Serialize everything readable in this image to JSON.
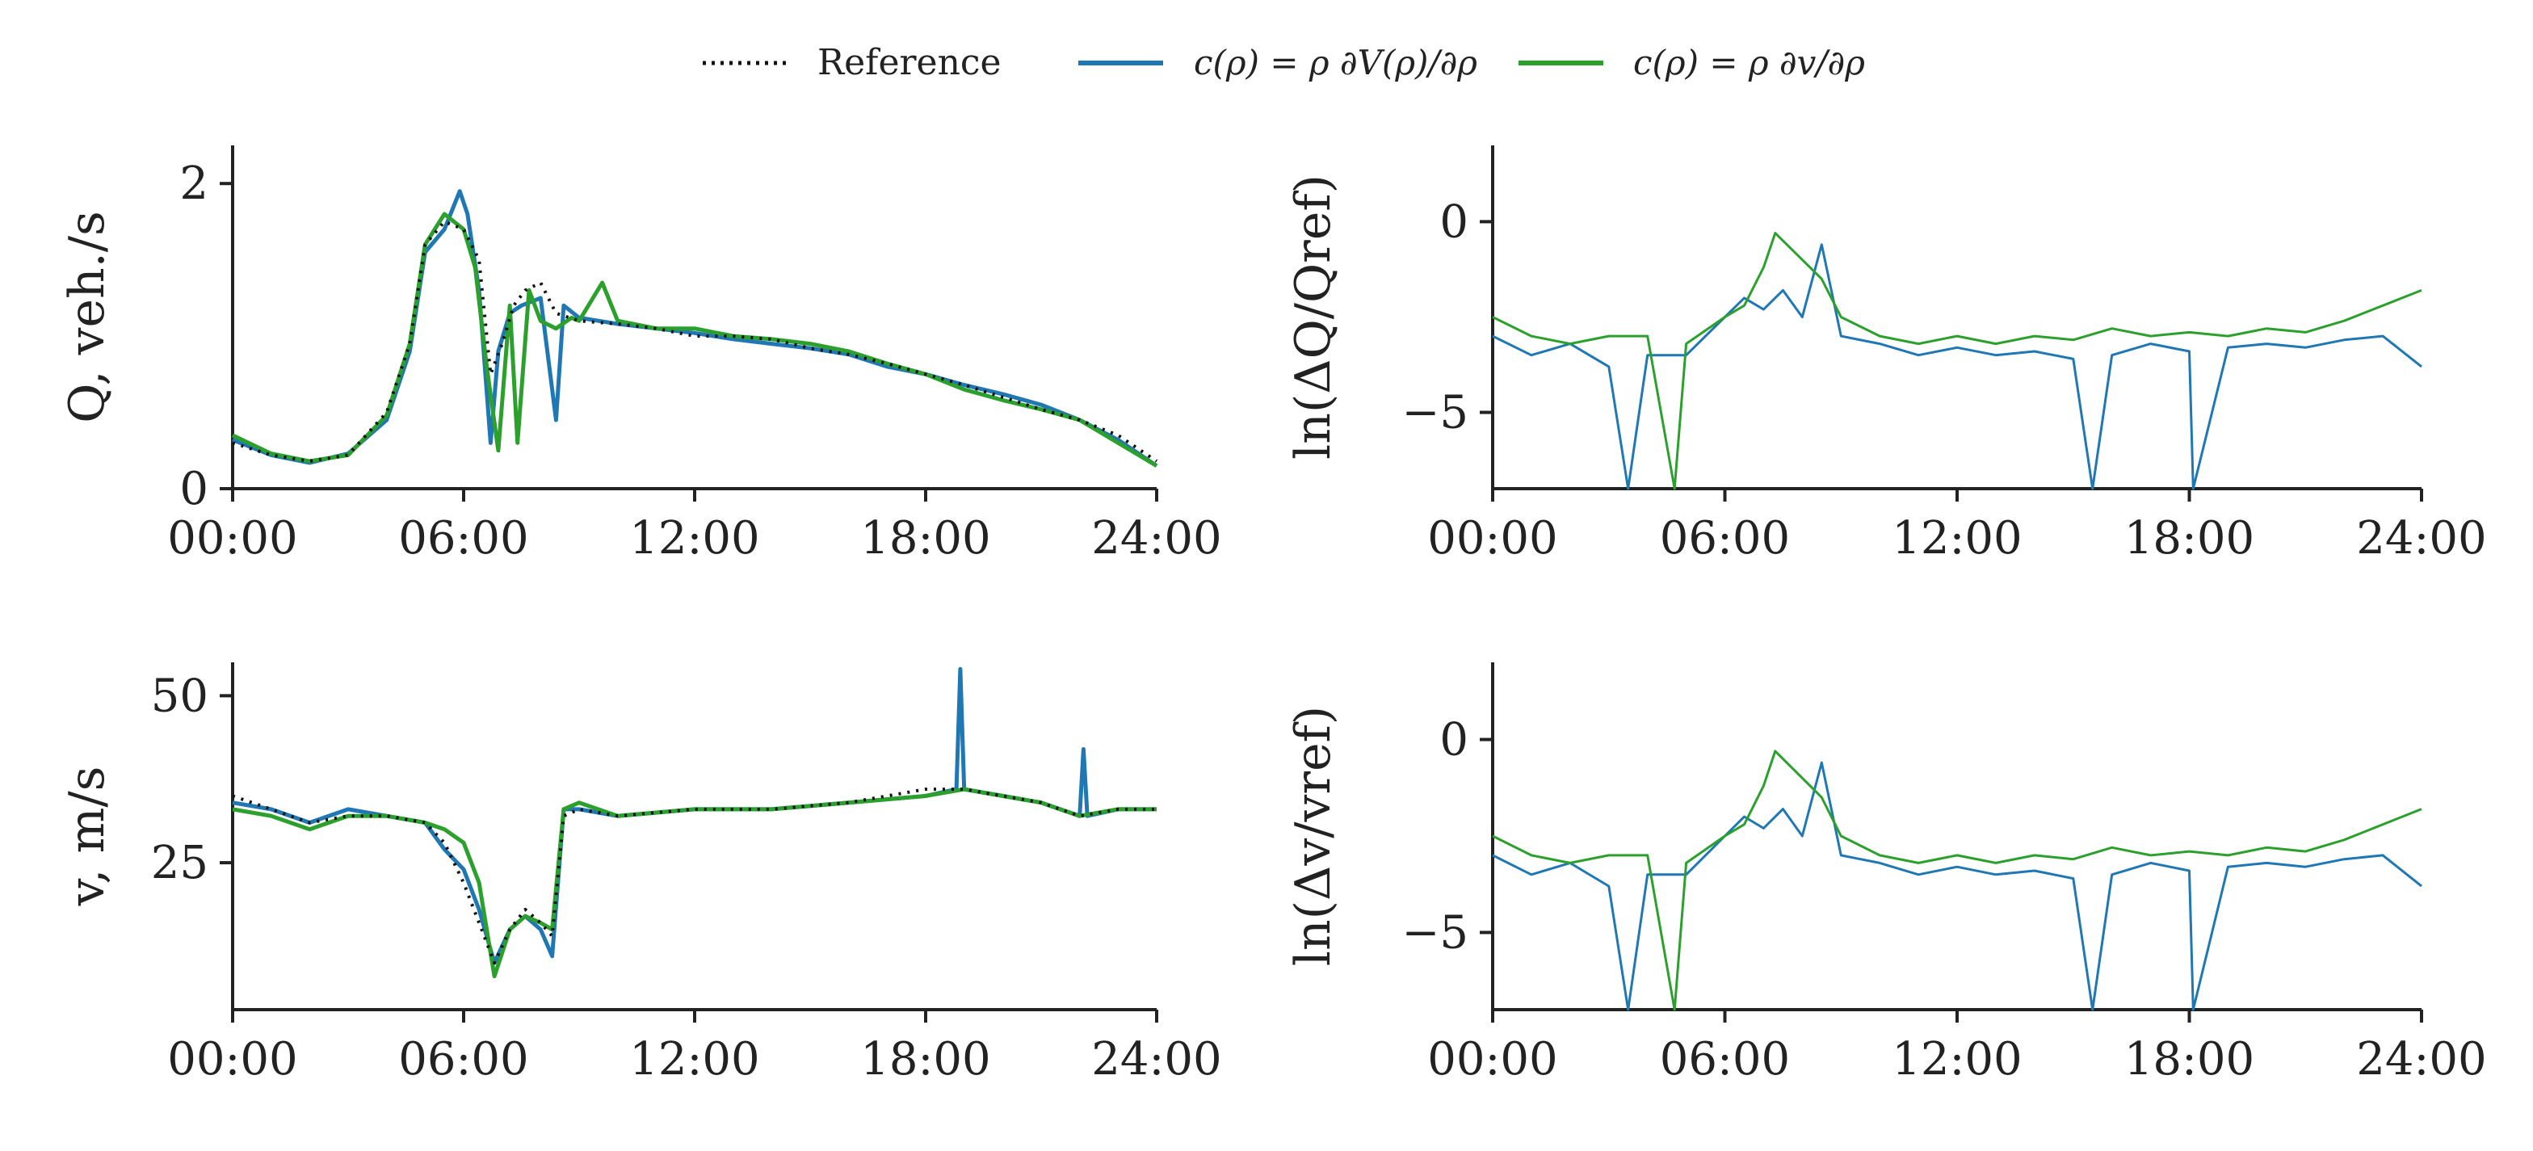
{
  "legend": {
    "entries": [
      {
        "label": "Reference",
        "style": "dotted",
        "color": "#111111"
      },
      {
        "label": "c(ρ) = ρ ∂V(ρ)/∂ρ",
        "style": "solid",
        "color": "#1f77b4"
      },
      {
        "label": "c(ρ) = ρ ∂v/∂ρ",
        "style": "solid",
        "color": "#2ca02c"
      }
    ]
  },
  "colors": {
    "reference": "#111111",
    "blue": "#1f77b4",
    "green": "#2ca02c",
    "axis": "#222222"
  },
  "chart_data": [
    {
      "id": "flow",
      "type": "line",
      "ylabel": "Q, veh./s",
      "xlabel": "",
      "xlim": [
        0,
        24
      ],
      "ylim": [
        0,
        2.25
      ],
      "yticks": [
        0,
        2
      ],
      "ytick_labels": [
        "0",
        "2"
      ],
      "xticks": [
        0,
        6,
        12,
        18,
        24
      ],
      "xtick_labels": [
        "00:00",
        "06:00",
        "12:00",
        "18:00",
        "24:00"
      ],
      "series": [
        {
          "name": "Reference",
          "x": [
            0,
            1,
            2,
            3,
            4,
            4.6,
            5,
            5.5,
            6,
            6.4,
            6.7,
            7,
            7.3,
            7.6,
            8,
            8.4,
            9,
            10,
            11,
            12,
            13,
            14,
            15,
            16,
            17,
            18,
            19,
            20,
            21,
            22,
            23,
            24
          ],
          "y": [
            0.3,
            0.22,
            0.18,
            0.22,
            0.5,
            0.95,
            1.6,
            1.75,
            1.7,
            1.5,
            0.75,
            0.95,
            1.2,
            1.3,
            1.35,
            1.15,
            1.1,
            1.08,
            1.05,
            1.0,
            1.0,
            0.98,
            0.92,
            0.88,
            0.82,
            0.75,
            0.68,
            0.6,
            0.52,
            0.45,
            0.35,
            0.18
          ]
        },
        {
          "name": "c(ρ) = ρ ∂V(ρ)/∂ρ",
          "x": [
            0,
            1,
            2,
            3,
            4,
            4.6,
            5,
            5.5,
            5.9,
            6.1,
            6.4,
            6.7,
            6.9,
            7.2,
            7.5,
            8,
            8.4,
            8.6,
            9,
            10,
            11,
            12,
            13,
            14,
            15,
            16,
            17,
            18,
            19,
            20,
            21,
            22,
            23,
            24
          ],
          "y": [
            0.32,
            0.22,
            0.17,
            0.23,
            0.45,
            0.9,
            1.55,
            1.7,
            1.95,
            1.8,
            1.3,
            0.3,
            0.9,
            1.15,
            1.2,
            1.25,
            0.45,
            1.2,
            1.12,
            1.08,
            1.05,
            1.02,
            0.98,
            0.95,
            0.92,
            0.88,
            0.8,
            0.75,
            0.68,
            0.62,
            0.55,
            0.45,
            0.32,
            0.15
          ]
        },
        {
          "name": "c(ρ) = ρ ∂v/∂ρ",
          "x": [
            0,
            1,
            2,
            3,
            4,
            4.6,
            5,
            5.5,
            6,
            6.3,
            6.6,
            6.9,
            7.2,
            7.4,
            7.7,
            8,
            8.4,
            8.8,
            9,
            9.6,
            10,
            11,
            12,
            13,
            14,
            15,
            16,
            17,
            18,
            19,
            20,
            21,
            22,
            23,
            24
          ],
          "y": [
            0.35,
            0.23,
            0.18,
            0.22,
            0.48,
            0.95,
            1.6,
            1.8,
            1.7,
            1.45,
            0.8,
            0.25,
            1.2,
            0.3,
            1.3,
            1.1,
            1.05,
            1.12,
            1.1,
            1.35,
            1.1,
            1.05,
            1.05,
            1.0,
            0.98,
            0.95,
            0.9,
            0.82,
            0.75,
            0.65,
            0.58,
            0.52,
            0.45,
            0.3,
            0.15
          ]
        }
      ]
    },
    {
      "id": "flow-error",
      "type": "line",
      "ylabel": "ln(ΔQ/Qref)",
      "xlim": [
        0,
        24
      ],
      "ylim": [
        -7,
        2
      ],
      "yticks": [
        0,
        -5
      ],
      "ytick_labels": [
        "0",
        "−5"
      ],
      "xticks": [
        0,
        6,
        12,
        18,
        24
      ],
      "xtick_labels": [
        "00:00",
        "06:00",
        "12:00",
        "18:00",
        "24:00"
      ],
      "series": [
        {
          "name": "c(ρ) = ρ ∂V(ρ)/∂ρ",
          "x": [
            0,
            1,
            2,
            3,
            3.5,
            4,
            5,
            6,
            6.5,
            7,
            7.5,
            8,
            8.5,
            9,
            10,
            11,
            12,
            13,
            14,
            15,
            15.5,
            16,
            17,
            18,
            18.1,
            19,
            20,
            21,
            22,
            23,
            24
          ],
          "y": [
            -3,
            -3.5,
            -3.2,
            -3.8,
            -7,
            -3.5,
            -3.5,
            -2.5,
            -2,
            -2.3,
            -1.8,
            -2.5,
            -0.6,
            -3,
            -3.2,
            -3.5,
            -3.3,
            -3.5,
            -3.4,
            -3.6,
            -7,
            -3.5,
            -3.2,
            -3.4,
            -7,
            -3.3,
            -3.2,
            -3.3,
            -3.1,
            -3,
            -3.8
          ]
        },
        {
          "name": "c(ρ) = ρ ∂v/∂ρ",
          "x": [
            0,
            1,
            2,
            3,
            4,
            4.7,
            5,
            6,
            6.5,
            7,
            7.3,
            7.8,
            8.5,
            9,
            10,
            11,
            12,
            13,
            14,
            15,
            16,
            17,
            18,
            19,
            20,
            21,
            22,
            23,
            24
          ],
          "y": [
            -2.5,
            -3,
            -3.2,
            -3,
            -3,
            -7,
            -3.2,
            -2.5,
            -2.2,
            -1.2,
            -0.3,
            -0.8,
            -1.5,
            -2.5,
            -3,
            -3.2,
            -3,
            -3.2,
            -3,
            -3.1,
            -2.8,
            -3,
            -2.9,
            -3,
            -2.8,
            -2.9,
            -2.6,
            -2.2,
            -1.8
          ]
        }
      ]
    },
    {
      "id": "speed",
      "type": "line",
      "ylabel": "v, m/s",
      "xlim": [
        0,
        24
      ],
      "ylim": [
        3,
        55
      ],
      "yticks": [
        25,
        50
      ],
      "ytick_labels": [
        "25",
        "50"
      ],
      "xticks": [
        0,
        6,
        12,
        18,
        24
      ],
      "xtick_labels": [
        "00:00",
        "06:00",
        "12:00",
        "18:00",
        "24:00"
      ],
      "series": [
        {
          "name": "Reference",
          "x": [
            0,
            1,
            2,
            3,
            4,
            5,
            5.5,
            6,
            6.4,
            6.8,
            7.2,
            7.6,
            8,
            8.3,
            8.6,
            9,
            10,
            12,
            14,
            16,
            18,
            19,
            20,
            21,
            22,
            23,
            24
          ],
          "y": [
            35,
            33,
            31,
            32,
            32,
            31,
            28,
            22,
            16,
            10,
            15,
            18,
            16,
            14,
            32,
            33,
            32,
            33,
            33,
            34,
            36,
            36,
            35,
            34,
            32,
            33,
            33
          ]
        },
        {
          "name": "c(ρ) = ρ ∂V(ρ)/∂ρ",
          "x": [
            0,
            1,
            2,
            3,
            4,
            5,
            5.5,
            6,
            6.4,
            6.8,
            7.2,
            7.6,
            8,
            8.3,
            8.6,
            9,
            10,
            12,
            14,
            16,
            18,
            18.8,
            18.9,
            19,
            20,
            21,
            22,
            22.1,
            22.2,
            23,
            24
          ],
          "y": [
            34,
            33,
            31,
            33,
            32,
            31,
            27,
            24,
            18,
            10,
            15,
            17,
            15,
            11,
            33,
            33,
            32,
            33,
            33,
            34,
            35,
            36,
            54,
            36,
            35,
            34,
            32,
            42,
            32,
            33,
            33
          ]
        },
        {
          "name": "c(ρ) = ρ ∂v/∂ρ",
          "x": [
            0,
            1,
            2,
            3,
            4,
            5,
            5.5,
            6,
            6.4,
            6.8,
            7.2,
            7.6,
            8,
            8.3,
            8.6,
            9,
            10,
            12,
            14,
            16,
            18,
            19,
            20,
            21,
            22,
            23,
            24
          ],
          "y": [
            33,
            32,
            30,
            32,
            32,
            31,
            30,
            28,
            22,
            8,
            15,
            17,
            16,
            15,
            33,
            34,
            32,
            33,
            33,
            34,
            35,
            36,
            35,
            34,
            32,
            33,
            33
          ]
        }
      ]
    },
    {
      "id": "speed-error",
      "type": "line",
      "ylabel": "ln(Δv/vref)",
      "xlim": [
        0,
        24
      ],
      "ylim": [
        -7,
        2
      ],
      "yticks": [
        0,
        -5
      ],
      "ytick_labels": [
        "0",
        "−5"
      ],
      "xticks": [
        0,
        6,
        12,
        18,
        24
      ],
      "xtick_labels": [
        "00:00",
        "06:00",
        "12:00",
        "18:00",
        "24:00"
      ],
      "series": [
        {
          "name": "c(ρ) = ρ ∂V(ρ)/∂ρ",
          "x": [
            0,
            1,
            2,
            3,
            3.5,
            4,
            5,
            6,
            6.5,
            7,
            7.5,
            8,
            8.5,
            9,
            10,
            11,
            12,
            13,
            14,
            15,
            15.5,
            16,
            17,
            18,
            18.1,
            19,
            20,
            21,
            22,
            23,
            24
          ],
          "y": [
            -3,
            -3.5,
            -3.2,
            -3.8,
            -7,
            -3.5,
            -3.5,
            -2.5,
            -2,
            -2.3,
            -1.8,
            -2.5,
            -0.6,
            -3,
            -3.2,
            -3.5,
            -3.3,
            -3.5,
            -3.4,
            -3.6,
            -7,
            -3.5,
            -3.2,
            -3.4,
            -7,
            -3.3,
            -3.2,
            -3.3,
            -3.1,
            -3,
            -3.8
          ]
        },
        {
          "name": "c(ρ) = ρ ∂v/∂ρ",
          "x": [
            0,
            1,
            2,
            3,
            4,
            4.7,
            5,
            6,
            6.5,
            7,
            7.3,
            7.8,
            8.5,
            9,
            10,
            11,
            12,
            13,
            14,
            15,
            16,
            17,
            18,
            19,
            20,
            21,
            22,
            23,
            24
          ],
          "y": [
            -2.5,
            -3,
            -3.2,
            -3,
            -3,
            -7,
            -3.2,
            -2.5,
            -2.2,
            -1.2,
            -0.3,
            -0.8,
            -1.5,
            -2.5,
            -3,
            -3.2,
            -3,
            -3.2,
            -3,
            -3.1,
            -2.8,
            -3,
            -2.9,
            -3,
            -2.8,
            -2.9,
            -2.6,
            -2.2,
            -1.8
          ]
        }
      ]
    }
  ]
}
